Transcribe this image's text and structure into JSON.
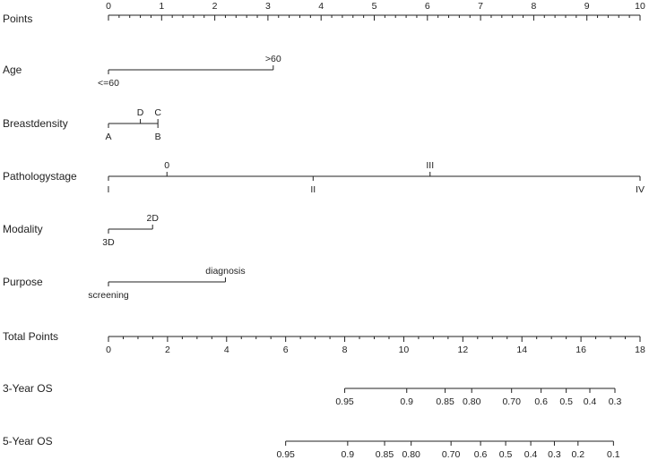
{
  "chart_data": {
    "type": "nomogram",
    "title": "",
    "points_axis": {
      "label": "Points",
      "ticks": [
        0,
        1,
        2,
        3,
        4,
        5,
        6,
        7,
        8,
        9,
        10
      ],
      "minor_step": 0.2,
      "range": [
        0,
        10
      ]
    },
    "variables": [
      {
        "label": "Age",
        "levels": [
          {
            "name": "<=60",
            "points": 0,
            "side": "below"
          },
          {
            "name": ">60",
            "points": 3.1,
            "side": "above"
          }
        ]
      },
      {
        "label": "Breastdensity",
        "levels": [
          {
            "name": "A",
            "points": 0,
            "side": "below"
          },
          {
            "name": "D",
            "points": 0.6,
            "side": "above"
          },
          {
            "name": "C",
            "points": 0.93,
            "side": "above"
          },
          {
            "name": "B",
            "points": 0.93,
            "side": "below"
          }
        ]
      },
      {
        "label": "Pathologystage",
        "levels": [
          {
            "name": "I",
            "points": 0,
            "side": "below"
          },
          {
            "name": "0",
            "points": 1.1,
            "side": "above"
          },
          {
            "name": "II",
            "points": 3.85,
            "side": "below"
          },
          {
            "name": "III",
            "points": 6.05,
            "side": "above"
          },
          {
            "name": "IV",
            "points": 10,
            "side": "below"
          }
        ]
      },
      {
        "label": "Modality",
        "levels": [
          {
            "name": "3D",
            "points": 0,
            "side": "below"
          },
          {
            "name": "2D",
            "points": 0.83,
            "side": "above"
          }
        ]
      },
      {
        "label": "Purpose",
        "levels": [
          {
            "name": "screening",
            "points": 0,
            "side": "below"
          },
          {
            "name": "diagnosis",
            "points": 2.2,
            "side": "above"
          }
        ]
      }
    ],
    "total_points_axis": {
      "label": "Total Points",
      "ticks": [
        0,
        2,
        4,
        6,
        8,
        10,
        12,
        14,
        16,
        18
      ],
      "minor_step": 0.5,
      "range": [
        0,
        18
      ]
    },
    "probability_axes": [
      {
        "label": "3-Year OS",
        "ticks": [
          {
            "label": "0.95",
            "total_points": 8.0
          },
          {
            "label": "0.9",
            "total_points": 10.1
          },
          {
            "label": "0.85",
            "total_points": 11.4
          },
          {
            "label": "0.80",
            "total_points": 12.3
          },
          {
            "label": "0.70",
            "total_points": 13.65
          },
          {
            "label": "0.6",
            "total_points": 14.65
          },
          {
            "label": "0.5",
            "total_points": 15.5
          },
          {
            "label": "0.4",
            "total_points": 16.3
          },
          {
            "label": "0.3",
            "total_points": 17.15
          }
        ]
      },
      {
        "label": "5-Year OS",
        "ticks": [
          {
            "label": "0.95",
            "total_points": 6.0
          },
          {
            "label": "0.9",
            "total_points": 8.1
          },
          {
            "label": "0.85",
            "total_points": 9.35
          },
          {
            "label": "0.80",
            "total_points": 10.25
          },
          {
            "label": "0.70",
            "total_points": 11.6
          },
          {
            "label": "0.6",
            "total_points": 12.6
          },
          {
            "label": "0.5",
            "total_points": 13.45
          },
          {
            "label": "0.4",
            "total_points": 14.3
          },
          {
            "label": "0.3",
            "total_points": 15.1
          },
          {
            "label": "0.2",
            "total_points": 15.9
          },
          {
            "label": "0.1",
            "total_points": 17.1
          }
        ]
      }
    ]
  }
}
